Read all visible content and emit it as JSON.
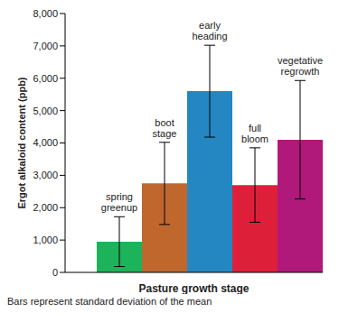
{
  "chart_data": {
    "type": "bar",
    "x_label": "Pasture growth stage",
    "y_label": "Ergot alkaloid content (ppb)",
    "caption": "Bars represent standard deviation of the mean",
    "categories": [
      "spring greenup",
      "boot stage",
      "early heading",
      "full bloom",
      "vegetative regrowth"
    ],
    "values": [
      950,
      2750,
      5600,
      2700,
      4100
    ],
    "errors": [
      770,
      1270,
      1420,
      1150,
      1830
    ],
    "colors": [
      "#1db35a",
      "#c0672e",
      "#2487c2",
      "#de1f3a",
      "#b0197a"
    ],
    "ylim": [
      0,
      8000
    ],
    "yticks": [
      0,
      {
        "value": 1000,
        "label": "1,000"
      },
      {
        "value": 2000,
        "label": "2,000"
      },
      {
        "value": 3000,
        "label": "3,000"
      },
      {
        "value": 4000,
        "label": "4,000"
      },
      {
        "value": 5000,
        "label": "5,000"
      },
      {
        "value": 6000,
        "label": "6,000"
      },
      {
        "value": 7000,
        "label": "7,000"
      },
      {
        "value": 8000,
        "label": "8,000"
      }
    ],
    "grid": false,
    "tick_labels": "y"
  }
}
